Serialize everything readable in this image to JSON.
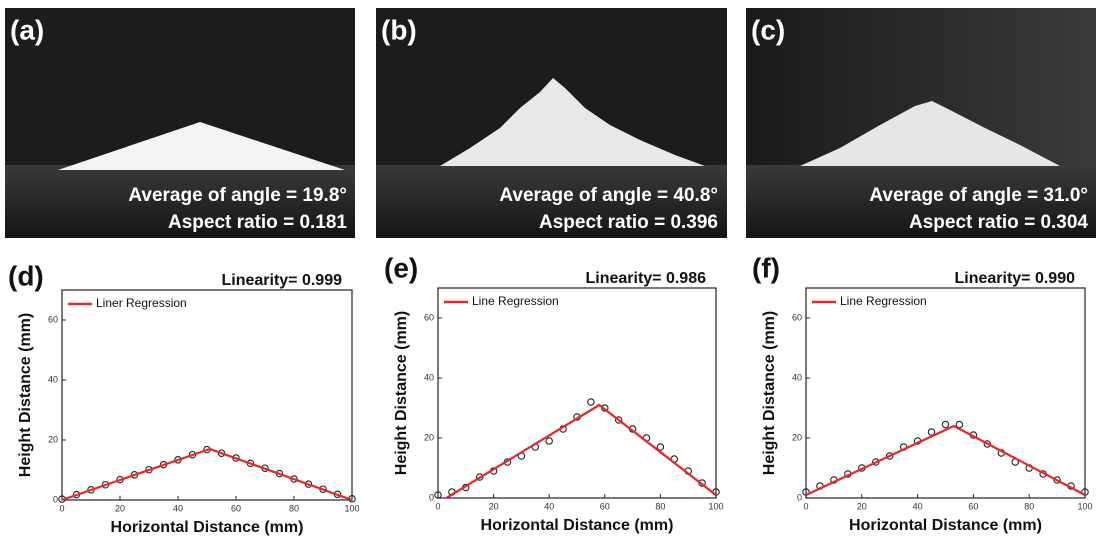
{
  "photos": [
    {
      "label": "(a)",
      "lines": [
        "Average of angle = 19.8°",
        "Aspect ratio = 0.181"
      ]
    },
    {
      "label": "(b)",
      "lines": [
        "Average of angle = 40.8°",
        "Aspect ratio = 0.396"
      ]
    },
    {
      "label": "(c)",
      "lines": [
        "Average of angle = 31.0°",
        "Aspect ratio = 0.304"
      ]
    }
  ],
  "chart_data": [
    {
      "type": "scatter",
      "panel_label": "(d)",
      "annotation": "Linearity= 0.999",
      "x_label": "Horizontal Distance (mm)",
      "y_label": "Height Distance (mm)",
      "xlim": [
        0,
        100
      ],
      "ylim": [
        0,
        70
      ],
      "xticks": [
        0,
        20,
        40,
        60,
        80,
        100
      ],
      "yticks": [
        0,
        20,
        40,
        60
      ],
      "series": [
        {
          "type": "scatter",
          "color": "#222222",
          "x": [
            0,
            5,
            10,
            15,
            20,
            25,
            30,
            35,
            40,
            45,
            50,
            55,
            60,
            65,
            70,
            75,
            80,
            85,
            90,
            95,
            100
          ],
          "values": [
            0.3,
            1.8,
            3.4,
            5.1,
            6.8,
            8.4,
            10.1,
            11.8,
            13.4,
            15.1,
            16.8,
            15.6,
            14.0,
            12.2,
            10.6,
            8.8,
            7.0,
            5.3,
            3.6,
            1.9,
            0.4
          ]
        },
        {
          "type": "line",
          "name": "Liner Regression",
          "color": "#e8262a",
          "x": [
            0,
            51,
            100
          ],
          "values": [
            0,
            17,
            0
          ]
        }
      ]
    },
    {
      "type": "scatter",
      "panel_label": "(e)",
      "annotation": "Linearity= 0.986",
      "x_label": "Horizontal Distance (mm)",
      "y_label": "Height Distance (mm)",
      "xlim": [
        0,
        100
      ],
      "ylim": [
        0,
        70
      ],
      "xticks": [
        0,
        20,
        40,
        60,
        80,
        100
      ],
      "yticks": [
        0,
        20,
        40,
        60
      ],
      "series": [
        {
          "type": "scatter",
          "color": "#222222",
          "x": [
            0,
            5,
            10,
            15,
            20,
            25,
            30,
            35,
            40,
            45,
            50,
            55,
            60,
            65,
            70,
            75,
            80,
            85,
            90,
            95,
            100
          ],
          "values": [
            1,
            2,
            3.5,
            7,
            9,
            12,
            14,
            17,
            19,
            23,
            27,
            32,
            30,
            26,
            23,
            20,
            17,
            13,
            9,
            5,
            2
          ]
        },
        {
          "type": "line",
          "name": "Line Regression",
          "color": "#e8262a",
          "x": [
            3,
            58,
            100
          ],
          "values": [
            0,
            31,
            1
          ]
        }
      ]
    },
    {
      "type": "scatter",
      "panel_label": "(f)",
      "annotation": "Linearity= 0.990",
      "x_label": "Horizontal Distance (mm)",
      "y_label": "Height Distance (mm)",
      "xlim": [
        0,
        100
      ],
      "ylim": [
        0,
        70
      ],
      "xticks": [
        0,
        20,
        40,
        60,
        80,
        100
      ],
      "yticks": [
        0,
        20,
        40,
        60
      ],
      "series": [
        {
          "type": "scatter",
          "color": "#222222",
          "x": [
            0,
            5,
            10,
            15,
            20,
            25,
            30,
            35,
            40,
            45,
            50,
            55,
            60,
            65,
            70,
            75,
            80,
            85,
            90,
            95,
            100
          ],
          "values": [
            2,
            4,
            6,
            8,
            10,
            12,
            14,
            17,
            19,
            22,
            24.5,
            24.5,
            21,
            18,
            15,
            12,
            10,
            8,
            6,
            4,
            2
          ]
        },
        {
          "type": "line",
          "name": "Line Regression",
          "color": "#e8262a",
          "x": [
            0,
            53,
            100
          ],
          "values": [
            1,
            24,
            1
          ]
        }
      ]
    }
  ]
}
